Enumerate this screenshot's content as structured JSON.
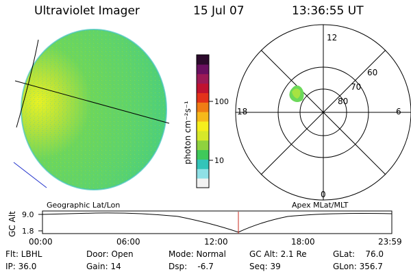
{
  "header": {
    "title": "Ultraviolet Imager",
    "date": "15 Jul 07",
    "time": "13:36:55 UT"
  },
  "colorbar": {
    "label": "photon cm⁻²s⁻¹",
    "ticks": [
      "100",
      "10"
    ]
  },
  "polar": {
    "mlt_labels": [
      "12",
      "18",
      "6",
      "0"
    ],
    "lat_labels": [
      "60",
      "70",
      "80"
    ]
  },
  "panels": {
    "left_caption": "Geographic Lat/Lon",
    "right_caption": "Apex MLat/MLT"
  },
  "timeline": {
    "ylabel": "GC Alt",
    "y_ticks": [
      "9.0",
      "1.8"
    ],
    "x_ticks": [
      "00:00",
      "06:00",
      "12:00",
      "18:00",
      "23:59"
    ]
  },
  "info": {
    "flt": "Flt: LBHL",
    "ip": "IP: 36.0",
    "door": "Door: Open",
    "gain": "Gain: 14",
    "mode": "Mode: Normal",
    "dsp": "Dsp:    -6.7",
    "gcalt": "GC Alt: 2.1 Re",
    "seq": "Seq: 39",
    "glat": "GLat:    76.0",
    "glon": "GLon: 356.7"
  },
  "colors": {
    "disk_main": "#5fd35a",
    "disk_bright": "#e8f224",
    "marker": "#c8281e",
    "colorbar": [
      "#f2f2f2",
      "#8fe0e6",
      "#33c4b9",
      "#3fc95a",
      "#8fd23e",
      "#d6e82a",
      "#f5ee1c",
      "#f6b91a",
      "#f07d14",
      "#e3321a",
      "#c01230",
      "#9c1a56",
      "#6a1060",
      "#2c0a2c"
    ]
  }
}
